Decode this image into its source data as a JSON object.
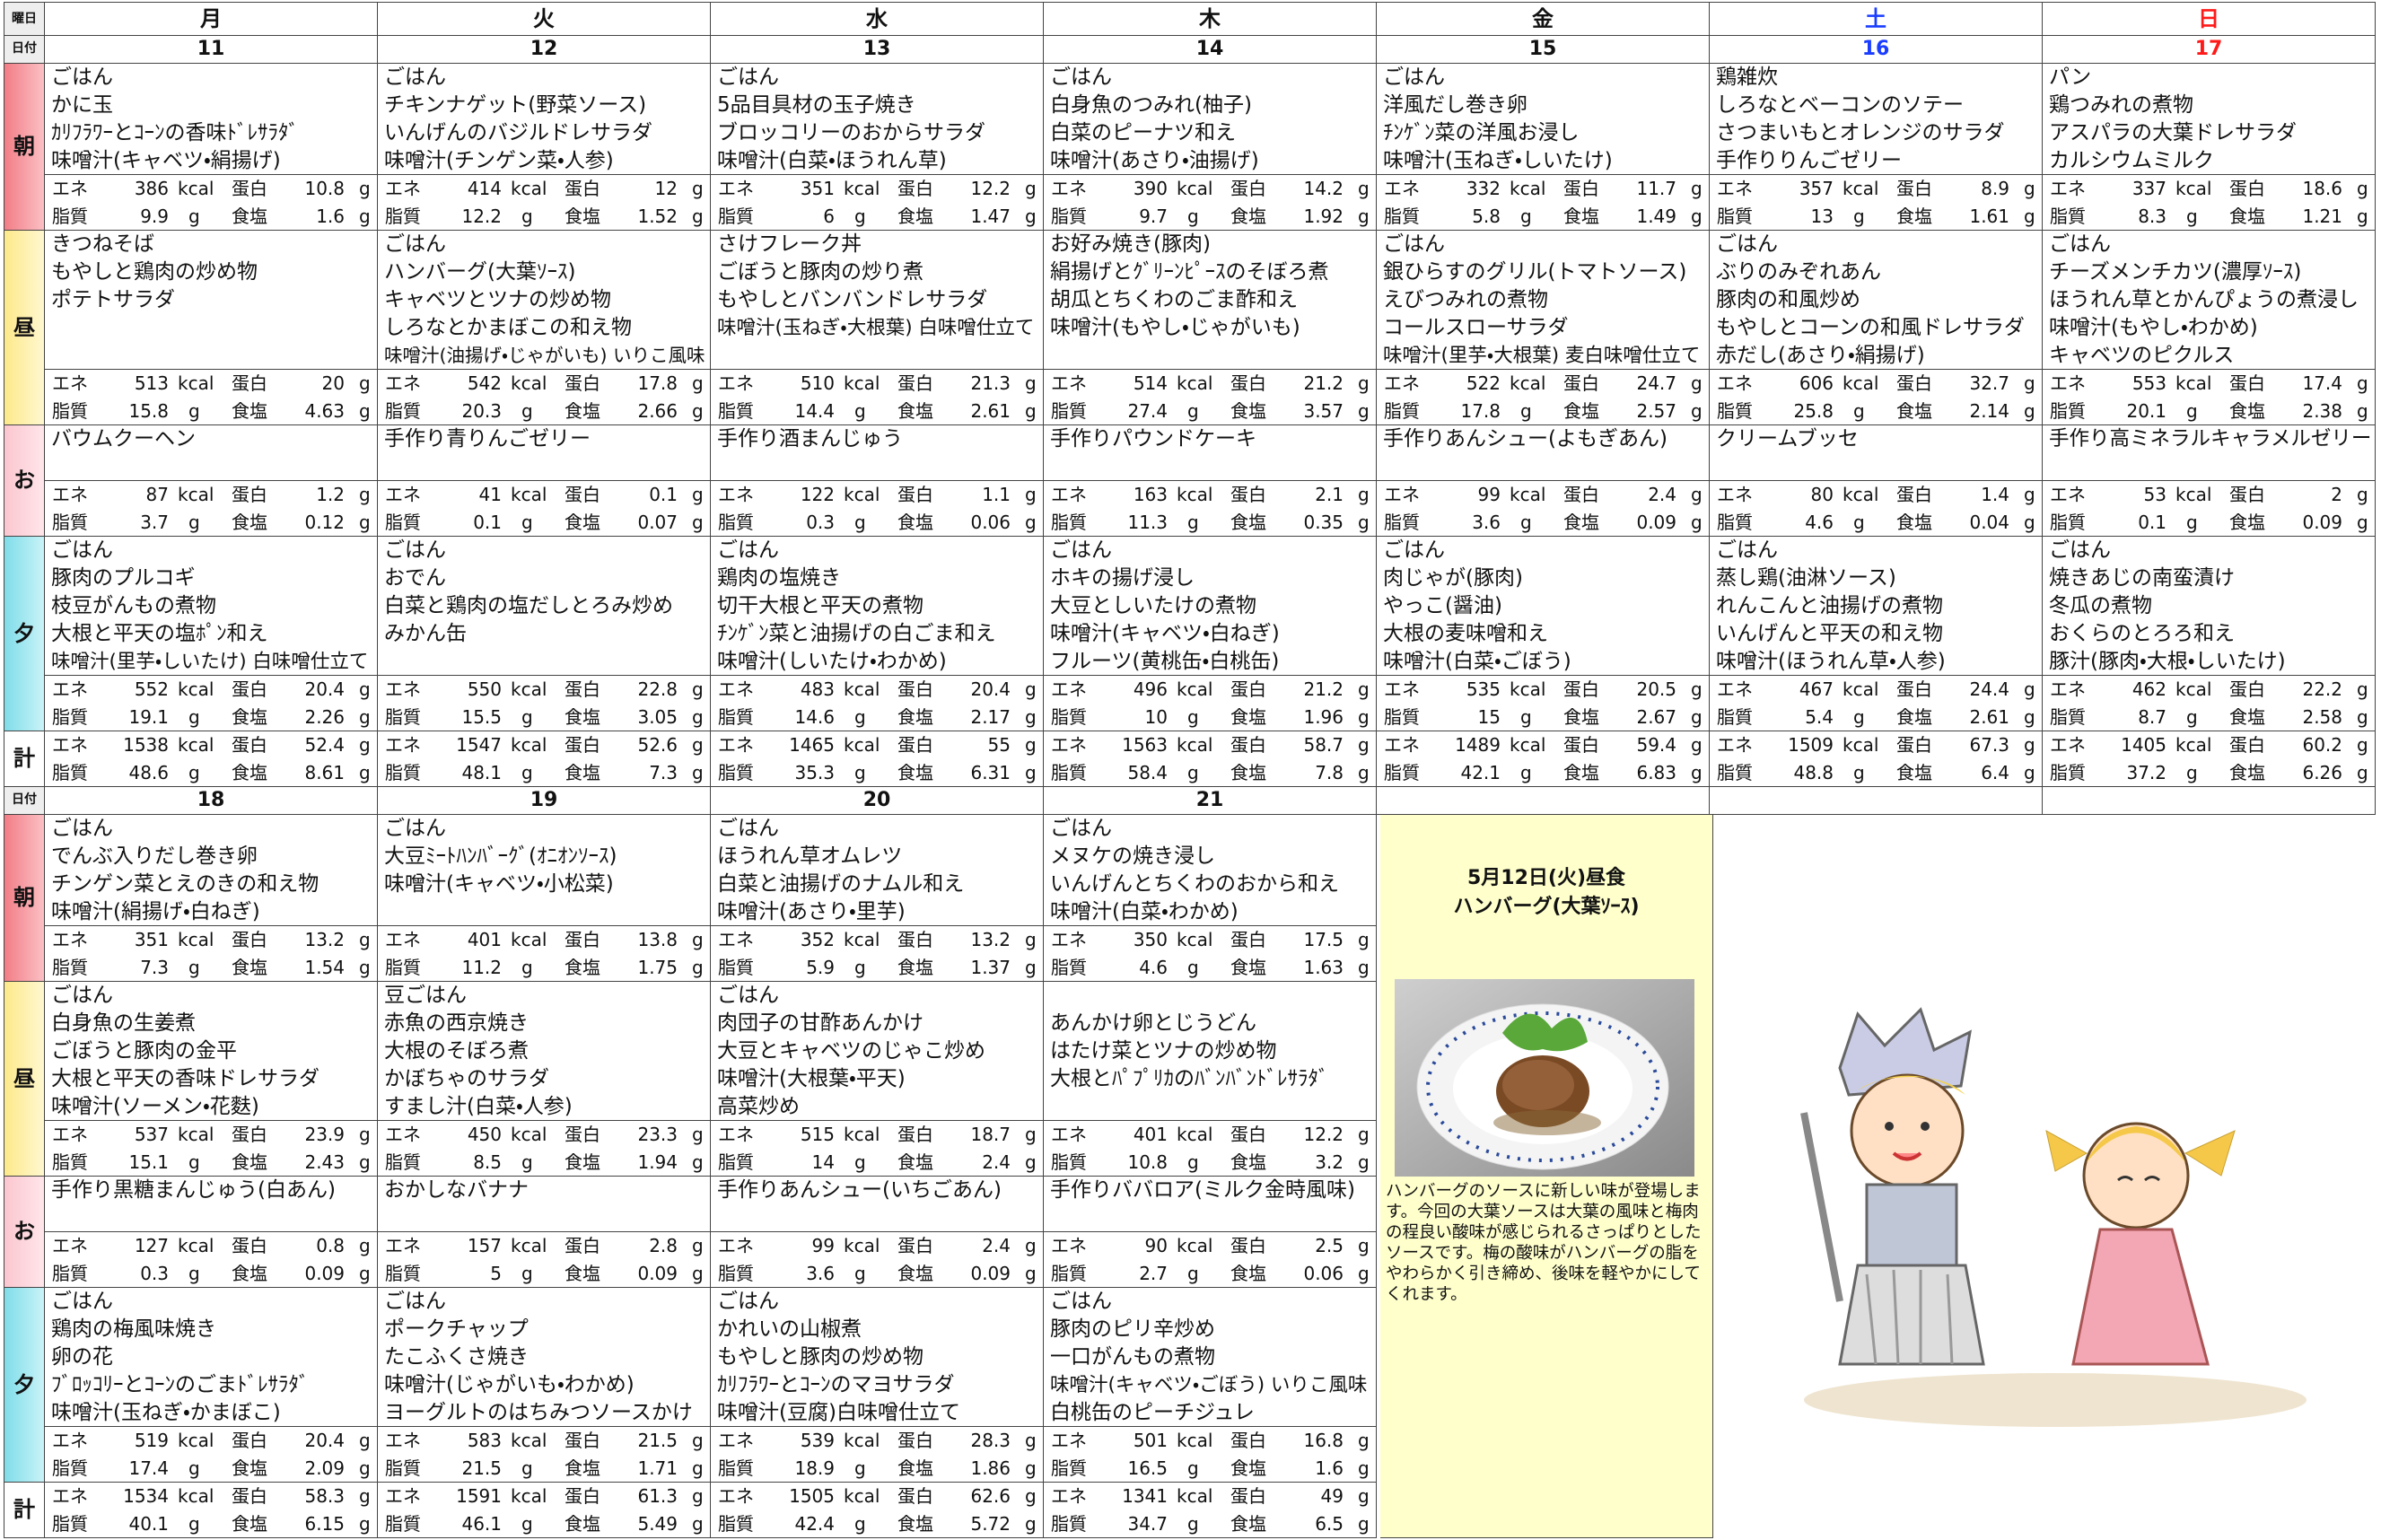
{
  "labels": {
    "weekday": "曜日",
    "date": "日付",
    "meals": [
      "朝",
      "昼",
      "お",
      "夕",
      "計"
    ],
    "nutrition": {
      "ene": "エネ",
      "kcal": "kcal",
      "pro": "蛋白",
      "fat": "脂質",
      "salt": "食塩",
      "g": "g"
    }
  },
  "weekdays": [
    "月",
    "火",
    "水",
    "木",
    "金",
    "土",
    "日"
  ],
  "weeks": [
    {
      "days": [
        {
          "date": "11",
          "meals": [
            {
              "items": [
                "ごはん",
                "かに玉",
                "ｶﾘﾌﾗﾜｰとｺｰﾝの香味ﾄﾞﾚｻﾗﾀﾞ",
                "味噌汁(キャベツ・絹揚げ)"
              ],
              "nutrition": [
                386,
                10.8,
                9.9,
                1.6
              ]
            },
            {
              "items": [
                "きつねそば",
                "もやしと鶏肉の炒め物",
                "ポテトサラダ"
              ],
              "nutrition": [
                513,
                20,
                15.8,
                4.63
              ]
            },
            {
              "items": [
                "バウムクーヘン"
              ],
              "nutrition": [
                87,
                1.2,
                3.7,
                0.12
              ]
            },
            {
              "items": [
                "ごはん",
                "豚肉のプルコギ",
                "枝豆がんもの煮物",
                "大根と平天の塩ﾎﾟﾝ和え",
                "味噌汁(里芋・しいたけ) 白味噌仕立て"
              ],
              "nutrition": [
                552,
                20.4,
                19.1,
                2.26
              ]
            }
          ],
          "total": [
            1538,
            52.4,
            48.6,
            8.61
          ]
        },
        {
          "date": "12",
          "meals": [
            {
              "items": [
                "ごはん",
                "チキンナゲット(野菜ソース)",
                "いんげんのバジルドレサラダ",
                "味噌汁(チンゲン菜・人参)"
              ],
              "nutrition": [
                414,
                12,
                12.2,
                1.52
              ]
            },
            {
              "items": [
                "ごはん",
                "ハンバーグ(大葉ｿｰｽ)",
                "キャベツとツナの炒め物",
                "しろなとかまぼこの和え物",
                "味噌汁(油揚げ・じゃがいも) いりこ風味"
              ],
              "nutrition": [
                542,
                17.8,
                20.3,
                2.66
              ]
            },
            {
              "items": [
                "手作り青りんごゼリー"
              ],
              "nutrition": [
                41,
                0.1,
                0.1,
                0.07
              ]
            },
            {
              "items": [
                "ごはん",
                "おでん",
                "白菜と鶏肉の塩だしとろみ炒め",
                "みかん缶"
              ],
              "nutrition": [
                550,
                22.8,
                15.5,
                3.05
              ]
            }
          ],
          "total": [
            1547,
            52.6,
            48.1,
            7.3
          ]
        },
        {
          "date": "13",
          "meals": [
            {
              "items": [
                "ごはん",
                "5品目具材の玉子焼き",
                "ブロッコリーのおからサラダ",
                "味噌汁(白菜・ほうれん草)"
              ],
              "nutrition": [
                351,
                12.2,
                6,
                1.47
              ]
            },
            {
              "items": [
                "さけフレーク丼",
                "ごぼうと豚肉の炒り煮",
                "もやしとバンバンドレサラダ",
                "味噌汁(玉ねぎ・大根葉) 白味噌仕立て"
              ],
              "nutrition": [
                510,
                21.3,
                14.4,
                2.61
              ]
            },
            {
              "items": [
                "手作り酒まんじゅう"
              ],
              "nutrition": [
                122,
                1.1,
                0.3,
                0.06
              ]
            },
            {
              "items": [
                "ごはん",
                "鶏肉の塩焼き",
                "切干大根と平天の煮物",
                "ﾁﾝｹﾞﾝ菜と油揚げの白ごま和え",
                "味噌汁(しいたけ・わかめ)"
              ],
              "nutrition": [
                483,
                20.4,
                14.6,
                2.17
              ]
            }
          ],
          "total": [
            1465,
            55,
            35.3,
            6.31
          ]
        },
        {
          "date": "14",
          "meals": [
            {
              "items": [
                "ごはん",
                "白身魚のつみれ(柚子)",
                "白菜のピーナツ和え",
                "味噌汁(あさり・油揚げ)"
              ],
              "nutrition": [
                390,
                14.2,
                9.7,
                1.92
              ]
            },
            {
              "items": [
                "お好み焼き(豚肉)",
                "絹揚げとｸﾞﾘｰﾝﾋﾟｰｽのそぼろ煮",
                "胡瓜とちくわのごま酢和え",
                "味噌汁(もやし・じゃがいも)"
              ],
              "nutrition": [
                514,
                21.2,
                27.4,
                3.57
              ]
            },
            {
              "items": [
                "手作りパウンドケーキ"
              ],
              "nutrition": [
                163,
                2.1,
                11.3,
                0.35
              ]
            },
            {
              "items": [
                "ごはん",
                "ホキの揚げ浸し",
                "大豆としいたけの煮物",
                "味噌汁(キャベツ・白ねぎ)",
                "フルーツ(黄桃缶・白桃缶)"
              ],
              "nutrition": [
                496,
                21.2,
                10,
                1.96
              ]
            }
          ],
          "total": [
            1563,
            58.7,
            58.4,
            7.8
          ]
        },
        {
          "date": "15",
          "meals": [
            {
              "items": [
                "ごはん",
                "洋風だし巻き卵",
                "ﾁﾝｹﾞﾝ菜の洋風お浸し",
                "味噌汁(玉ねぎ・しいたけ)"
              ],
              "nutrition": [
                332,
                11.7,
                5.8,
                1.49
              ]
            },
            {
              "items": [
                "ごはん",
                "銀ひらすのグリル(トマトソース)",
                "えびつみれの煮物",
                "コールスローサラダ",
                "味噌汁(里芋・大根葉) 麦白味噌仕立て"
              ],
              "nutrition": [
                522,
                24.7,
                17.8,
                2.57
              ]
            },
            {
              "items": [
                "手作りあんシュー(よもぎあん)"
              ],
              "nutrition": [
                99,
                2.4,
                3.6,
                0.09
              ]
            },
            {
              "items": [
                "ごはん",
                "肉じゃが(豚肉)",
                "やっこ(醤油)",
                "大根の麦味噌和え",
                "味噌汁(白菜・ごぼう)"
              ],
              "nutrition": [
                535,
                20.5,
                15,
                2.67
              ]
            }
          ],
          "total": [
            1489,
            59.4,
            42.1,
            6.83
          ]
        },
        {
          "date": "16",
          "meals": [
            {
              "items": [
                "鶏雑炊",
                "しろなとベーコンのソテー",
                "さつまいもとオレンジのサラダ",
                "手作りりんごゼリー"
              ],
              "nutrition": [
                357,
                8.9,
                13,
                1.61
              ]
            },
            {
              "items": [
                "ごはん",
                "ぶりのみぞれあん",
                "豚肉の和風炒め",
                "もやしとコーンの和風ドレサラダ",
                "赤だし(あさり・絹揚げ)"
              ],
              "nutrition": [
                606,
                32.7,
                25.8,
                2.14
              ]
            },
            {
              "items": [
                "クリームブッセ"
              ],
              "nutrition": [
                80,
                1.4,
                4.6,
                0.04
              ]
            },
            {
              "items": [
                "ごはん",
                "蒸し鶏(油淋ソース)",
                "れんこんと油揚げの煮物",
                "いんげんと平天の和え物",
                "味噌汁(ほうれん草・人参)"
              ],
              "nutrition": [
                467,
                24.4,
                5.4,
                2.61
              ]
            }
          ],
          "total": [
            1509,
            67.3,
            48.8,
            6.4
          ]
        },
        {
          "date": "17",
          "meals": [
            {
              "items": [
                "パン",
                "鶏つみれの煮物",
                "アスパラの大葉ドレサラダ",
                "カルシウムミルク"
              ],
              "nutrition": [
                337,
                18.6,
                8.3,
                1.21
              ]
            },
            {
              "items": [
                "ごはん",
                "チーズメンチカツ(濃厚ｿｰｽ)",
                "ほうれん草とかんぴょうの煮浸し",
                "味噌汁(もやし・わかめ)",
                "キャベツのピクルス"
              ],
              "nutrition": [
                553,
                17.4,
                20.1,
                2.38
              ]
            },
            {
              "items": [
                "手作り高ミネラルキャラメルゼリー"
              ],
              "nutrition": [
                53,
                2,
                0.1,
                0.09
              ]
            },
            {
              "items": [
                "ごはん",
                "焼きあじの南蛮漬け",
                "冬瓜の煮物",
                "おくらのとろろ和え",
                "豚汁(豚肉・大根・しいたけ)"
              ],
              "nutrition": [
                462,
                22.2,
                8.7,
                2.58
              ]
            }
          ],
          "total": [
            1405,
            60.2,
            37.2,
            6.26
          ]
        }
      ]
    },
    {
      "days": [
        {
          "date": "18",
          "meals": [
            {
              "items": [
                "ごはん",
                "でんぶ入りだし巻き卵",
                "チンゲン菜とえのきの和え物",
                "味噌汁(絹揚げ・白ねぎ)"
              ],
              "nutrition": [
                351,
                13.2,
                7.3,
                1.54
              ]
            },
            {
              "items": [
                "ごはん",
                "白身魚の生姜煮",
                "ごぼうと豚肉の金平",
                "大根と平天の香味ドレサラダ",
                "味噌汁(ソーメン・花麩)"
              ],
              "nutrition": [
                537,
                23.9,
                15.1,
                2.43
              ]
            },
            {
              "items": [
                "手作り黒糖まんじゅう(白あん)"
              ],
              "nutrition": [
                127,
                0.8,
                0.3,
                0.09
              ]
            },
            {
              "items": [
                "ごはん",
                "鶏肉の梅風味焼き",
                "卵の花",
                "ﾌﾞﾛｯｺﾘｰとｺｰﾝのごまﾄﾞﾚｻﾗﾀﾞ",
                "味噌汁(玉ねぎ・かまぼこ)"
              ],
              "nutrition": [
                519,
                20.4,
                17.4,
                2.09
              ]
            }
          ],
          "total": [
            1534,
            58.3,
            40.1,
            6.15
          ]
        },
        {
          "date": "19",
          "meals": [
            {
              "items": [
                "ごはん",
                "大豆ﾐｰﾄﾊﾝﾊﾞｰｸﾞ(ｵﾆｵﾝｿｰｽ)",
                "味噌汁(キャベツ・小松菜)"
              ],
              "nutrition": [
                401,
                13.8,
                11.2,
                1.75
              ]
            },
            {
              "items": [
                "豆ごはん",
                "赤魚の西京焼き",
                "大根のそぼろ煮",
                "かぼちゃのサラダ",
                "すまし汁(白菜・人参)"
              ],
              "nutrition": [
                450,
                23.3,
                8.5,
                1.94
              ]
            },
            {
              "items": [
                "おかしなバナナ"
              ],
              "nutrition": [
                157,
                2.8,
                5,
                0.09
              ]
            },
            {
              "items": [
                "ごはん",
                "ポークチャップ",
                "たこふくさ焼き",
                "味噌汁(じゃがいも・わかめ)",
                "ヨーグルトのはちみつソースかけ"
              ],
              "nutrition": [
                583,
                21.5,
                21.5,
                1.71
              ]
            }
          ],
          "total": [
            1591,
            61.3,
            46.1,
            5.49
          ]
        },
        {
          "date": "20",
          "meals": [
            {
              "items": [
                "ごはん",
                "ほうれん草オムレツ",
                "白菜と油揚げのナムル和え",
                "味噌汁(あさり・里芋)"
              ],
              "nutrition": [
                352,
                13.2,
                5.9,
                1.37
              ]
            },
            {
              "items": [
                "ごはん",
                "肉団子の甘酢あんかけ",
                "大豆とキャベツのじゃこ炒め",
                "味噌汁(大根葉・平天)",
                "高菜炒め"
              ],
              "nutrition": [
                515,
                18.7,
                14,
                2.4
              ]
            },
            {
              "items": [
                "手作りあんシュー(いちごあん)"
              ],
              "nutrition": [
                99,
                2.4,
                3.6,
                0.09
              ]
            },
            {
              "items": [
                "ごはん",
                "かれいの山椒煮",
                "もやしと豚肉の炒め物",
                "ｶﾘﾌﾗﾜｰとｺｰﾝのマヨサラダ",
                "味噌汁(豆腐)白味噌仕立て"
              ],
              "nutrition": [
                539,
                28.3,
                18.9,
                1.86
              ]
            }
          ],
          "total": [
            1505,
            62.6,
            42.4,
            5.72
          ]
        },
        {
          "date": "21",
          "meals": [
            {
              "items": [
                "ごはん",
                "メヌケの焼き浸し",
                "いんげんとちくわのおから和え",
                "味噌汁(白菜・わかめ)"
              ],
              "nutrition": [
                350,
                17.5,
                4.6,
                1.63
              ]
            },
            {
              "items": [
                null,
                "あんかけ卵とじうどん",
                "はたけ菜とツナの炒め物",
                "大根とﾊﾟﾌﾟﾘｶのﾊﾞﾝﾊﾞﾝﾄﾞﾚｻﾗﾀﾞ"
              ],
              "nutrition": [
                401,
                12.2,
                10.8,
                3.2
              ]
            },
            {
              "items": [
                "手作りババロア(ミルク金時風味)"
              ],
              "nutrition": [
                90,
                2.5,
                2.7,
                0.06
              ]
            },
            {
              "items": [
                "ごはん",
                "豚肉のピリ辛炒め",
                "一口がんもの煮物",
                "味噌汁(キャベツ・ごぼう) いりこ風味",
                "白桃缶のピーチジュレ"
              ],
              "nutrition": [
                501,
                16.8,
                16.5,
                1.6
              ]
            }
          ],
          "total": [
            1341,
            49,
            34.7,
            6.5
          ]
        }
      ]
    }
  ],
  "feature": {
    "title": "5月12日(火)昼食",
    "dish": "ハンバーグ(大葉ｿｰｽ)",
    "text": "ハンバーグのソースに新しい味が登場します。今回の大葉ソースは大葉の風味と梅肉の程良い酸味が感じられるさっぱりとしたソースです。梅の酸味がハンバーグの脂をやわらかく引き締め、後味を軽やかにしてくれます。"
  }
}
